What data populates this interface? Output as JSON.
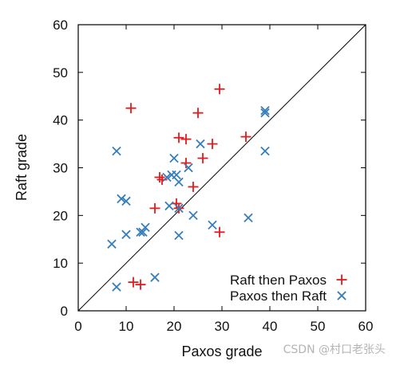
{
  "chart_data": {
    "type": "scatter",
    "xlabel": "Paxos grade",
    "ylabel": "Raft grade",
    "xlim": [
      0,
      60
    ],
    "ylim": [
      0,
      60
    ],
    "xticks": [
      "0",
      "10",
      "20",
      "30",
      "40",
      "50",
      "60"
    ],
    "yticks": [
      "0",
      "10",
      "20",
      "30",
      "40",
      "50",
      "60"
    ],
    "diagonal": "y = x",
    "legend_position": "bottom-right",
    "series": [
      {
        "name": "Raft then Paxos",
        "marker": "plus",
        "color": "#e41a1c",
        "points": [
          [
            11,
            42.5
          ],
          [
            29.5,
            46.5
          ],
          [
            25,
            41.5
          ],
          [
            21,
            36.3
          ],
          [
            22.5,
            36
          ],
          [
            35,
            36.5
          ],
          [
            28,
            35
          ],
          [
            22.5,
            31
          ],
          [
            26,
            32
          ],
          [
            17,
            28
          ],
          [
            17.5,
            27.5
          ],
          [
            24,
            26
          ],
          [
            20.5,
            22.5
          ],
          [
            21,
            21.5
          ],
          [
            16,
            21.5
          ],
          [
            29.5,
            16.5
          ],
          [
            11.5,
            6
          ],
          [
            13,
            5.5
          ]
        ]
      },
      {
        "name": "Paxos then Raft",
        "marker": "x",
        "color": "#377eb8",
        "points": [
          [
            39,
            42
          ],
          [
            39,
            41.5
          ],
          [
            8,
            33.5
          ],
          [
            39,
            33.5
          ],
          [
            25.5,
            35
          ],
          [
            20,
            32
          ],
          [
            23,
            30
          ],
          [
            19.5,
            28.5
          ],
          [
            20.5,
            28.5
          ],
          [
            18.5,
            28
          ],
          [
            21,
            27
          ],
          [
            9,
            23.5
          ],
          [
            10,
            23
          ],
          [
            19,
            22
          ],
          [
            21,
            21.5
          ],
          [
            24,
            20
          ],
          [
            35.5,
            19.5
          ],
          [
            28,
            18
          ],
          [
            14,
            17.5
          ],
          [
            13,
            16.5
          ],
          [
            13.5,
            16.5
          ],
          [
            10,
            16
          ],
          [
            21,
            15.8
          ],
          [
            7,
            14
          ],
          [
            16,
            7
          ],
          [
            8,
            5
          ]
        ]
      }
    ]
  },
  "watermark": "CSDN @村口老张头"
}
